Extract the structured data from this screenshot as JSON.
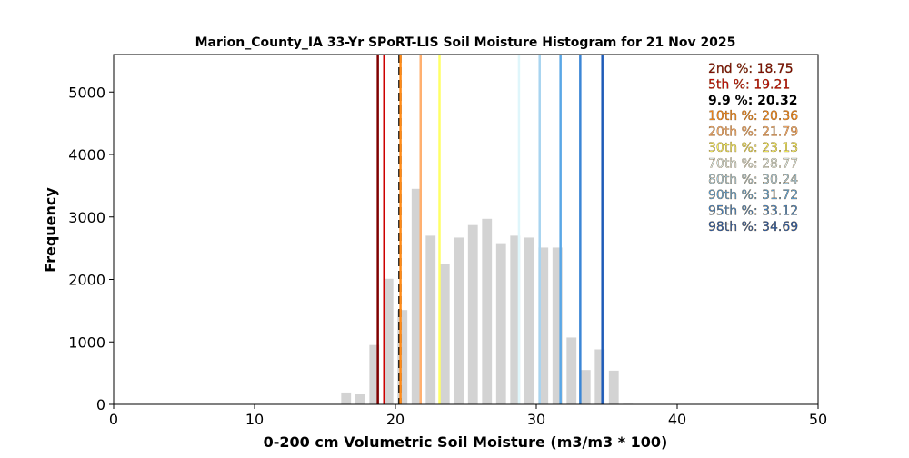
{
  "chart_data": {
    "type": "bar",
    "title": "Marion_County_IA 33-Yr SPoRT-LIS Soil Moisture Histogram for 21 Nov 2025",
    "xlabel": "0-200 cm Volumetric Soil Moisture (m3/m3 * 100)",
    "ylabel": "Frequency",
    "xlim": [
      0,
      50
    ],
    "ylim": [
      0,
      5600
    ],
    "x_ticks": [
      0,
      10,
      20,
      30,
      40,
      50
    ],
    "y_ticks": [
      0,
      1000,
      2000,
      3000,
      4000,
      5000
    ],
    "bar_color": "#d3d3d3",
    "bins": [
      {
        "x": 16.5,
        "value": 190
      },
      {
        "x": 17.5,
        "value": 160
      },
      {
        "x": 18.5,
        "value": 950
      },
      {
        "x": 19.5,
        "value": 2010
      },
      {
        "x": 20.5,
        "value": 1510
      },
      {
        "x": 21.5,
        "value": 3450
      },
      {
        "x": 22.5,
        "value": 2700
      },
      {
        "x": 23.5,
        "value": 2250
      },
      {
        "x": 24.5,
        "value": 2670
      },
      {
        "x": 25.5,
        "value": 2870
      },
      {
        "x": 26.5,
        "value": 2970
      },
      {
        "x": 27.5,
        "value": 2580
      },
      {
        "x": 28.5,
        "value": 2700
      },
      {
        "x": 29.5,
        "value": 2670
      },
      {
        "x": 30.5,
        "value": 2510
      },
      {
        "x": 31.5,
        "value": 2510
      },
      {
        "x": 32.5,
        "value": 1070
      },
      {
        "x": 33.5,
        "value": 550
      },
      {
        "x": 34.5,
        "value": 880
      },
      {
        "x": 35.5,
        "value": 540
      },
      {
        "x": 36.5,
        "value": 10
      }
    ],
    "percentile_lines": [
      {
        "label": "2nd %: 18.75",
        "value": 18.75,
        "color": "#800000",
        "dashed": false
      },
      {
        "label": "5th %: 19.21",
        "value": 19.21,
        "color": "#cc0000",
        "dashed": false
      },
      {
        "label": "9.9 %: 20.32",
        "value": 20.32,
        "color": "#000000",
        "dashed": true
      },
      {
        "label": "10th %: 20.36",
        "value": 20.36,
        "color": "#ff8c1a",
        "dashed": false
      },
      {
        "label": "20th %: 21.79",
        "value": 21.79,
        "color": "#ffb070",
        "dashed": false
      },
      {
        "label": "30th %: 23.13",
        "value": 23.13,
        "color": "#ffff66",
        "dashed": false
      },
      {
        "label": "70th %: 28.77",
        "value": 28.77,
        "color": "#dff6fb",
        "dashed": false
      },
      {
        "label": "80th %: 30.24",
        "value": 30.24,
        "color": "#a8d4f0",
        "dashed": false
      },
      {
        "label": "90th %: 31.72",
        "value": 31.72,
        "color": "#5aa7e6",
        "dashed": false
      },
      {
        "label": "95th %: 33.12",
        "value": 33.12,
        "color": "#3b86d6",
        "dashed": false
      },
      {
        "label": "98th %: 34.69",
        "value": 34.69,
        "color": "#1f5cb8",
        "dashed": false
      }
    ],
    "legend_placement": "top-right"
  }
}
